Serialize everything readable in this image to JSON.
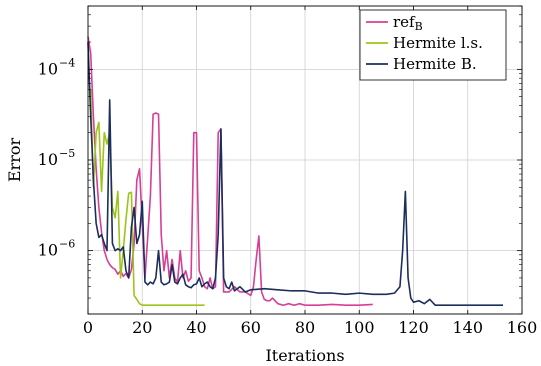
{
  "chart_data": {
    "type": "line",
    "xlabel": "Iterations",
    "ylabel": "Error",
    "xlim": [
      0,
      160
    ],
    "ylim": [
      2e-07,
      0.0005
    ],
    "yscale": "log",
    "grid": true,
    "legend_position": "top-right",
    "x_ticks": [
      0,
      20,
      40,
      60,
      80,
      100,
      120,
      140,
      160
    ],
    "x_tick_labels": [
      "0",
      "20",
      "40",
      "60",
      "80",
      "100",
      "120",
      "140",
      "160"
    ],
    "y_ticks": [
      1e-06,
      1e-05,
      0.0001
    ],
    "y_tick_labels": [
      {
        "base": "10",
        "exp": "−6"
      },
      {
        "base": "10",
        "exp": "−5"
      },
      {
        "base": "10",
        "exp": "−4"
      }
    ],
    "series": [
      {
        "name": "ref",
        "name_sub": "B",
        "color": "#d63f96",
        "points": [
          [
            0,
            0.00023
          ],
          [
            1,
            0.00015
          ],
          [
            2,
            3e-05
          ],
          [
            3,
            8e-06
          ],
          [
            4,
            3e-06
          ],
          [
            5,
            1.6e-06
          ],
          [
            6,
            1e-06
          ],
          [
            7,
            8e-07
          ],
          [
            8,
            7e-07
          ],
          [
            9,
            6.5e-07
          ],
          [
            10,
            6.2e-07
          ],
          [
            11,
            5.5e-07
          ],
          [
            12,
            6e-07
          ],
          [
            13,
            5.2e-07
          ],
          [
            14,
            5.6e-07
          ],
          [
            15,
            5e-07
          ],
          [
            16,
            6.2e-07
          ],
          [
            17,
            1.2e-06
          ],
          [
            18,
            6e-06
          ],
          [
            19,
            8e-06
          ],
          [
            20,
            2e-06
          ],
          [
            21,
            5e-07
          ],
          [
            22,
            1.4e-06
          ],
          [
            23,
            4e-06
          ],
          [
            24,
            3.2e-05
          ],
          [
            25,
            3.3e-05
          ],
          [
            26,
            3.2e-05
          ],
          [
            27,
            1.5e-06
          ],
          [
            28,
            6e-07
          ],
          [
            29,
            1e-06
          ],
          [
            30,
            5e-07
          ],
          [
            31,
            8e-07
          ],
          [
            32,
            5e-07
          ],
          [
            33,
            4.5e-07
          ],
          [
            34,
            1e-06
          ],
          [
            35,
            5e-07
          ],
          [
            36,
            6e-07
          ],
          [
            37,
            4.6e-07
          ],
          [
            38,
            5e-07
          ],
          [
            39,
            2e-05
          ],
          [
            40,
            2e-05
          ],
          [
            41,
            6e-07
          ],
          [
            42,
            5e-07
          ],
          [
            43,
            4e-07
          ],
          [
            44,
            3.8e-07
          ],
          [
            45,
            5e-07
          ],
          [
            46,
            3.8e-07
          ],
          [
            47,
            4e-07
          ],
          [
            48,
            2e-05
          ],
          [
            49,
            2.2e-05
          ],
          [
            50,
            3.5e-07
          ],
          [
            52,
            3.5e-07
          ],
          [
            54,
            4e-07
          ],
          [
            56,
            3.5e-07
          ],
          [
            58,
            3.5e-07
          ],
          [
            60,
            3.2e-07
          ],
          [
            61,
            4e-07
          ],
          [
            62,
            8e-07
          ],
          [
            63,
            1.45e-06
          ],
          [
            64,
            3.5e-07
          ],
          [
            65,
            2.9e-07
          ],
          [
            66,
            2.8e-07
          ],
          [
            67,
            2.8e-07
          ],
          [
            68,
            3e-07
          ],
          [
            70,
            2.6e-07
          ],
          [
            72,
            2.5e-07
          ],
          [
            74,
            2.6e-07
          ],
          [
            76,
            2.5e-07
          ],
          [
            78,
            2.6e-07
          ],
          [
            80,
            2.5e-07
          ],
          [
            85,
            2.5e-07
          ],
          [
            90,
            2.55e-07
          ],
          [
            95,
            2.5e-07
          ],
          [
            100,
            2.5e-07
          ],
          [
            105,
            2.55e-07
          ]
        ]
      },
      {
        "name": "Hermite l.s.",
        "color": "#9dc41a",
        "points": [
          [
            1,
            6e-05
          ],
          [
            2,
            5e-06
          ],
          [
            3,
            2e-05
          ],
          [
            4,
            2.6e-05
          ],
          [
            5,
            4.5e-06
          ],
          [
            6,
            2e-05
          ],
          [
            7,
            1.5e-05
          ],
          [
            8,
            2e-05
          ],
          [
            9,
            3e-06
          ],
          [
            10,
            2.3e-06
          ],
          [
            11,
            4.5e-06
          ],
          [
            12,
            5e-07
          ],
          [
            13,
            1e-06
          ],
          [
            14,
            2.2e-06
          ],
          [
            15,
            4.3e-06
          ],
          [
            16,
            4.4e-06
          ],
          [
            17,
            3.2e-07
          ],
          [
            18,
            2.9e-07
          ],
          [
            19,
            2.6e-07
          ],
          [
            20,
            2.5e-07
          ],
          [
            22,
            2.5e-07
          ],
          [
            25,
            2.5e-07
          ],
          [
            30,
            2.5e-07
          ],
          [
            35,
            2.5e-07
          ],
          [
            40,
            2.5e-07
          ],
          [
            43,
            2.5e-07
          ]
        ]
      },
      {
        "name": "Hermite B.",
        "color": "#1c2e5e",
        "points": [
          [
            0,
            0.0002
          ],
          [
            1,
            3e-05
          ],
          [
            2,
            6e-06
          ],
          [
            3,
            2e-06
          ],
          [
            4,
            1.4e-06
          ],
          [
            5,
            1.5e-06
          ],
          [
            6,
            1.2e-06
          ],
          [
            7,
            1e-06
          ],
          [
            8,
            4.6e-05
          ],
          [
            9,
            1.2e-06
          ],
          [
            10,
            1e-06
          ],
          [
            11,
            1.05e-06
          ],
          [
            12,
            1e-06
          ],
          [
            13,
            1.1e-06
          ],
          [
            14,
            6e-07
          ],
          [
            15,
            5e-07
          ],
          [
            16,
            1.8e-06
          ],
          [
            17,
            3e-06
          ],
          [
            18,
            1.2e-06
          ],
          [
            19,
            1.5e-06
          ],
          [
            20,
            3.5e-06
          ],
          [
            21,
            4.5e-07
          ],
          [
            22,
            4.2e-07
          ],
          [
            23,
            4.5e-07
          ],
          [
            24,
            4.3e-07
          ],
          [
            25,
            5e-07
          ],
          [
            26,
            1e-06
          ],
          [
            27,
            4.5e-07
          ],
          [
            28,
            4.2e-07
          ],
          [
            29,
            4.3e-07
          ],
          [
            30,
            4.5e-07
          ],
          [
            31,
            7e-07
          ],
          [
            32,
            4.5e-07
          ],
          [
            33,
            4.3e-07
          ],
          [
            34,
            5e-07
          ],
          [
            35,
            5.5e-07
          ],
          [
            36,
            4.2e-07
          ],
          [
            37,
            4e-07
          ],
          [
            38,
            3.9e-07
          ],
          [
            39,
            4.2e-07
          ],
          [
            40,
            4.3e-07
          ],
          [
            41,
            5e-07
          ],
          [
            42,
            4e-07
          ],
          [
            43,
            4.3e-07
          ],
          [
            44,
            4.5e-07
          ],
          [
            45,
            4e-07
          ],
          [
            46,
            3.8e-07
          ],
          [
            47,
            5e-07
          ],
          [
            48,
            1.5e-06
          ],
          [
            49,
            2.2e-05
          ],
          [
            50,
            5e-07
          ],
          [
            51,
            4e-07
          ],
          [
            52,
            3.8e-07
          ],
          [
            53,
            4.5e-07
          ],
          [
            54,
            3.6e-07
          ],
          [
            56,
            4e-07
          ],
          [
            58,
            3.5e-07
          ],
          [
            60,
            3.7e-07
          ],
          [
            65,
            3.8e-07
          ],
          [
            70,
            3.7e-07
          ],
          [
            75,
            3.6e-07
          ],
          [
            80,
            3.6e-07
          ],
          [
            85,
            3.4e-07
          ],
          [
            90,
            3.4e-07
          ],
          [
            95,
            3.3e-07
          ],
          [
            100,
            3.4e-07
          ],
          [
            105,
            3.3e-07
          ],
          [
            110,
            3.3e-07
          ],
          [
            113,
            3.4e-07
          ],
          [
            115,
            4e-07
          ],
          [
            116,
            1e-06
          ],
          [
            117,
            4.5e-06
          ],
          [
            118,
            5e-07
          ],
          [
            119,
            3e-07
          ],
          [
            120,
            2.7e-07
          ],
          [
            122,
            2.8e-07
          ],
          [
            124,
            2.6e-07
          ],
          [
            126,
            2.9e-07
          ],
          [
            128,
            2.5e-07
          ],
          [
            130,
            2.5e-07
          ],
          [
            135,
            2.5e-07
          ],
          [
            140,
            2.5e-07
          ],
          [
            145,
            2.5e-07
          ],
          [
            150,
            2.5e-07
          ],
          [
            153,
            2.5e-07
          ]
        ]
      }
    ]
  }
}
